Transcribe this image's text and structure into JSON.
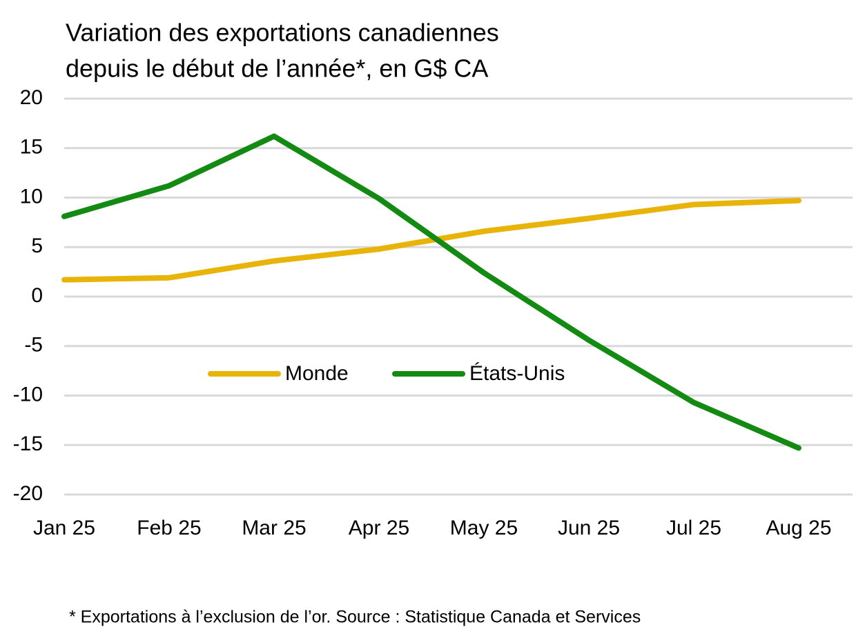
{
  "chart_data": {
    "type": "line",
    "title": [
      "Variation des exportations canadiennes",
      "depuis le début de l’année*, en G$ CA"
    ],
    "categories": [
      "Jan 25",
      "Feb 25",
      "Mar 25",
      "Apr 25",
      "May 25",
      "Jun 25",
      "Jul 25",
      "Aug 25"
    ],
    "series": [
      {
        "name": "Monde",
        "color": "#e8b40a",
        "values": [
          1.7,
          1.9,
          3.6,
          4.8,
          6.6,
          7.9,
          9.3,
          9.7
        ]
      },
      {
        "name": "États-Unis",
        "color": "#138a12",
        "values": [
          8.1,
          11.2,
          16.2,
          9.9,
          2.4,
          -4.4,
          -10.7,
          -15.3
        ]
      }
    ],
    "ylim": [
      -20,
      20
    ],
    "yticks": [
      -20,
      -15,
      -10,
      -5,
      0,
      5,
      10,
      15,
      20
    ],
    "grid": true,
    "legend": "center",
    "footnote": "* Exportations à l’exclusion de l’or. Source : Statistique Canada et Services"
  }
}
